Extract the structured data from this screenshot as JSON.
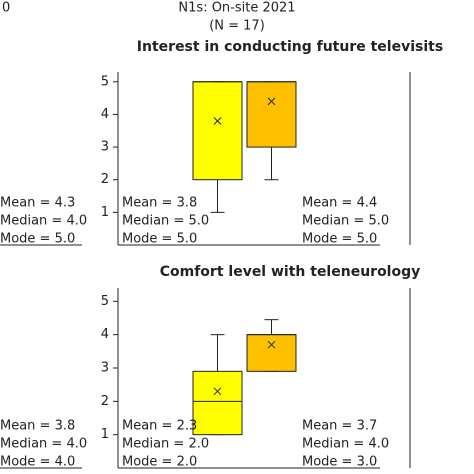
{
  "header": {
    "left_fragment": "0",
    "title": "N1s: On-site 2021",
    "subtitle": "(N = 17)"
  },
  "chart_data": [
    {
      "type": "box",
      "title": "Interest in conducting future televisits",
      "ylim": [
        0,
        5.3
      ],
      "yticks": [
        1,
        2,
        3,
        4,
        5
      ],
      "series": [
        {
          "color": "#ffff00",
          "min": 1,
          "q1": 2,
          "median": 5,
          "q3": 5,
          "max": 5,
          "mean": 3.8,
          "stats": [
            "Mean = 3.8",
            "Median = 5.0",
            "Mode = 5.0"
          ]
        },
        {
          "color": "#ffc000",
          "min": 2,
          "q1": 3,
          "median": 5,
          "q3": 5,
          "max": 5,
          "mean": 4.4,
          "stats": [
            "Mean = 4.4",
            "Median = 5.0",
            "Mode = 5.0"
          ]
        }
      ]
    },
    {
      "type": "box",
      "title": "Comfort level with teleneurology",
      "ylim": [
        0,
        5.4
      ],
      "yticks": [
        1,
        2,
        3,
        4,
        5
      ],
      "series": [
        {
          "color": "#ffff00",
          "min": 1,
          "q1": 1,
          "median": 2,
          "q3": 2.9,
          "max": 4,
          "mean": 2.3,
          "stats": [
            "Mean = 2.3",
            "Median = 2.0",
            "Mode = 2.0"
          ]
        },
        {
          "color": "#ffc000",
          "min": 2.9,
          "q1": 2.9,
          "median": 4,
          "q3": 4,
          "max": 4.45,
          "mean": 3.7,
          "stats": [
            "Mean = 3.7",
            "Median = 4.0",
            "Mode = 3.0"
          ]
        }
      ]
    }
  ],
  "side_panels": {
    "left": [
      [
        "Mean = 4.3",
        "Median = 4.0",
        "Mode = 5.0"
      ],
      [
        "Mean = 3.8",
        "Median = 4.0",
        "Mode = 4.0"
      ]
    ]
  }
}
